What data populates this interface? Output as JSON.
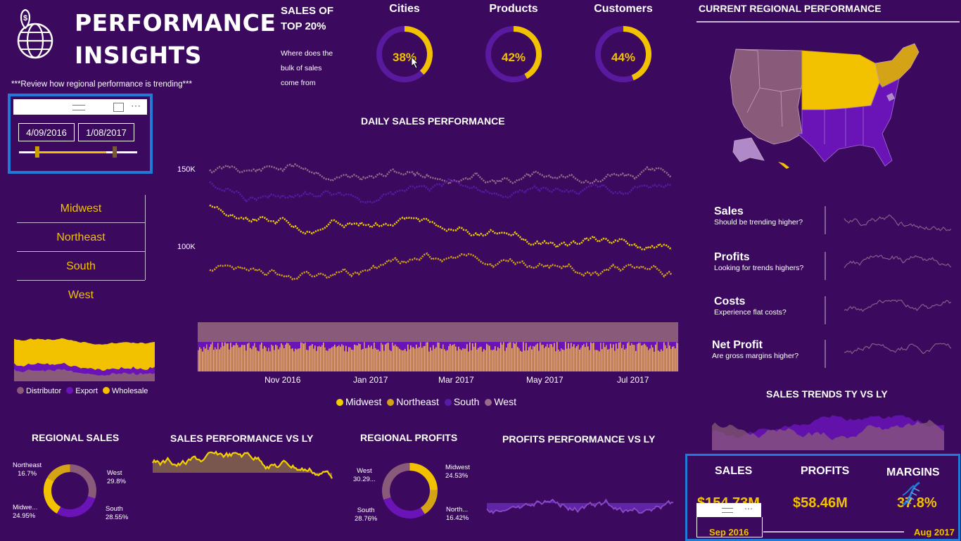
{
  "header": {
    "title_line1": "PERFORMANCE",
    "title_line2": "INSIGHTS",
    "subtitle": "***Review how regional performance is trending***"
  },
  "date_slicer": {
    "start": "4/09/2016",
    "end": "1/08/2017",
    "start_fraction": 0.44,
    "end_fraction": 0.81
  },
  "regions": [
    "Midwest",
    "Northeast",
    "South",
    "West"
  ],
  "top20": {
    "title_line1": "SALES OF",
    "title_line2": "TOP 20%",
    "desc_line1": "Where does the",
    "desc_line2": "bulk of sales",
    "desc_line3": "come from",
    "gauges": [
      {
        "label": "Cities",
        "value": "38%",
        "fraction": 0.38
      },
      {
        "label": "Products",
        "value": "42%",
        "fraction": 0.42
      },
      {
        "label": "Customers",
        "value": "44%",
        "fraction": 0.44
      }
    ]
  },
  "channel_legend": [
    {
      "label": "Distributor",
      "color": "#8a5a7a"
    },
    {
      "label": "Export",
      "color": "#6a14b8"
    },
    {
      "label": "Wholesale",
      "color": "#f2c200"
    }
  ],
  "daily_chart": {
    "title": "DAILY SALES PERFORMANCE",
    "y_ticks": [
      "150K",
      "100K"
    ],
    "x_ticks": [
      "Nov 2016",
      "Jan 2017",
      "Mar 2017",
      "May 2017",
      "Jul 2017"
    ],
    "legend": [
      {
        "label": "Midwest",
        "color": "#f2d000"
      },
      {
        "label": "Northeast",
        "color": "#d4a316"
      },
      {
        "label": "South",
        "color": "#5a1aa8"
      },
      {
        "label": "West",
        "color": "#9a6a8a"
      }
    ]
  },
  "map": {
    "title": "CURRENT REGIONAL PERFORMANCE"
  },
  "trend_kpis": [
    {
      "title": "Sales",
      "sub": "Should be trending higher?"
    },
    {
      "title": "Profits",
      "sub": "Looking for trends highers?"
    },
    {
      "title": "Costs",
      "sub": "Experience flat costs?"
    },
    {
      "title": "Net Profit",
      "sub": "Are gross margins higher?"
    }
  ],
  "sales_trends": {
    "title": "SALES TRENDS TY VS LY"
  },
  "regional_sales": {
    "title": "REGIONAL SALES",
    "slices": [
      {
        "name": "Northeast",
        "pct": "16.7%",
        "value": 16.7,
        "color": "#d4a316"
      },
      {
        "name": "West",
        "pct": "29.8%",
        "value": 29.8,
        "color": "#8a5a7a"
      },
      {
        "name": "South",
        "pct": "28.55%",
        "value": 28.55,
        "color": "#6a14b8"
      },
      {
        "name": "Midwe...",
        "pct": "24.95%",
        "value": 24.95,
        "color": "#f2c200"
      }
    ]
  },
  "sales_vs_ly": {
    "title": "SALES PERFORMANCE VS LY"
  },
  "regional_profits": {
    "title": "REGIONAL PROFITS",
    "slices": [
      {
        "name": "Midwest",
        "pct": "24.53%",
        "value": 24.53,
        "color": "#f2c200"
      },
      {
        "name": "North...",
        "pct": "16.42%",
        "value": 16.42,
        "color": "#d4a316"
      },
      {
        "name": "South",
        "pct": "28.76%",
        "value": 28.76,
        "color": "#6a14b8"
      },
      {
        "name": "West",
        "pct": "30.29...",
        "value": 30.29,
        "color": "#8a5a7a"
      }
    ]
  },
  "profits_vs_ly": {
    "title": "PROFITS PERFORMANCE VS LY"
  },
  "summary": {
    "sales_label": "SALES",
    "sales_value": "$154.73M",
    "profits_label": "PROFITS",
    "profits_value": "$58.46M",
    "margins_label": "MARGINS",
    "margins_value": "37.8%",
    "range_start": "Sep 2016",
    "range_end": "Aug 2017"
  },
  "colors": {
    "background": "#3b0a5e",
    "gold": "#f2c200",
    "purple": "#6a14b8",
    "mauve": "#8a5a7a",
    "focus": "#1f7bd6"
  }
}
